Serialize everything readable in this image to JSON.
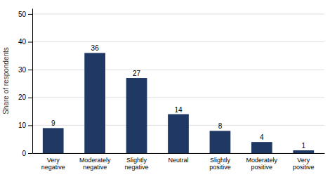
{
  "chart_data": {
    "type": "bar",
    "ylabel": "Share of respondents",
    "categories": [
      "Very\nnegative",
      "Moderately\nnegative",
      "Slightly\nnegative",
      "Neutral",
      "Slightly\npositive",
      "Moderately\npositive",
      "Very\npositive"
    ],
    "values": [
      9,
      36,
      27,
      14,
      8,
      4,
      1
    ],
    "color": "#1F3864",
    "ylim": [
      0,
      52
    ],
    "yticks": [
      0,
      10,
      20,
      30,
      40,
      50
    ],
    "grid": true,
    "data_labels": true
  }
}
